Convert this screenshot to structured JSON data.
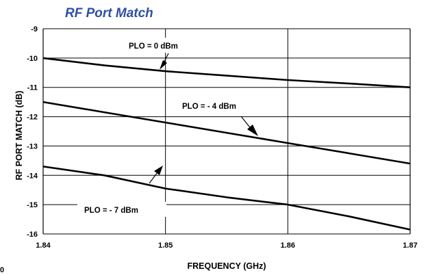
{
  "chart_data": {
    "type": "line",
    "title": "RF Port Match",
    "xlabel": "FREQUENCY (GHz)",
    "ylabel": "RF PORT MATCH (dB)",
    "xlim": [
      1.84,
      1.87
    ],
    "ylim": [
      -16,
      -9
    ],
    "x_ticks": [
      "1.84",
      "1.85",
      "1.86",
      "1.87"
    ],
    "y_ticks": [
      "-9",
      "-10",
      "-11",
      "-12",
      "-13",
      "-14",
      "-15",
      "-16"
    ],
    "grid": true,
    "series": [
      {
        "name": "PLO = 0 dBm",
        "x": [
          1.84,
          1.845,
          1.85,
          1.855,
          1.86,
          1.865,
          1.87
        ],
        "y": [
          -10.0,
          -10.25,
          -10.45,
          -10.6,
          -10.75,
          -10.87,
          -11.0
        ]
      },
      {
        "name": "PLO = - 4 dBm",
        "x": [
          1.84,
          1.845,
          1.85,
          1.855,
          1.86,
          1.865,
          1.87
        ],
        "y": [
          -11.5,
          -11.85,
          -12.2,
          -12.55,
          -12.9,
          -13.25,
          -13.6
        ]
      },
      {
        "name": "PLO = - 7 dBm",
        "x": [
          1.84,
          1.845,
          1.85,
          1.855,
          1.86,
          1.865,
          1.87
        ],
        "y": [
          -13.7,
          -14.0,
          -14.45,
          -14.75,
          -15.0,
          -15.4,
          -15.85
        ]
      }
    ],
    "annotations": [
      "PLO = 0 dBm",
      "PLO = - 4 dBm",
      "PLO = - 7 dBm"
    ]
  },
  "stray_text": "0"
}
